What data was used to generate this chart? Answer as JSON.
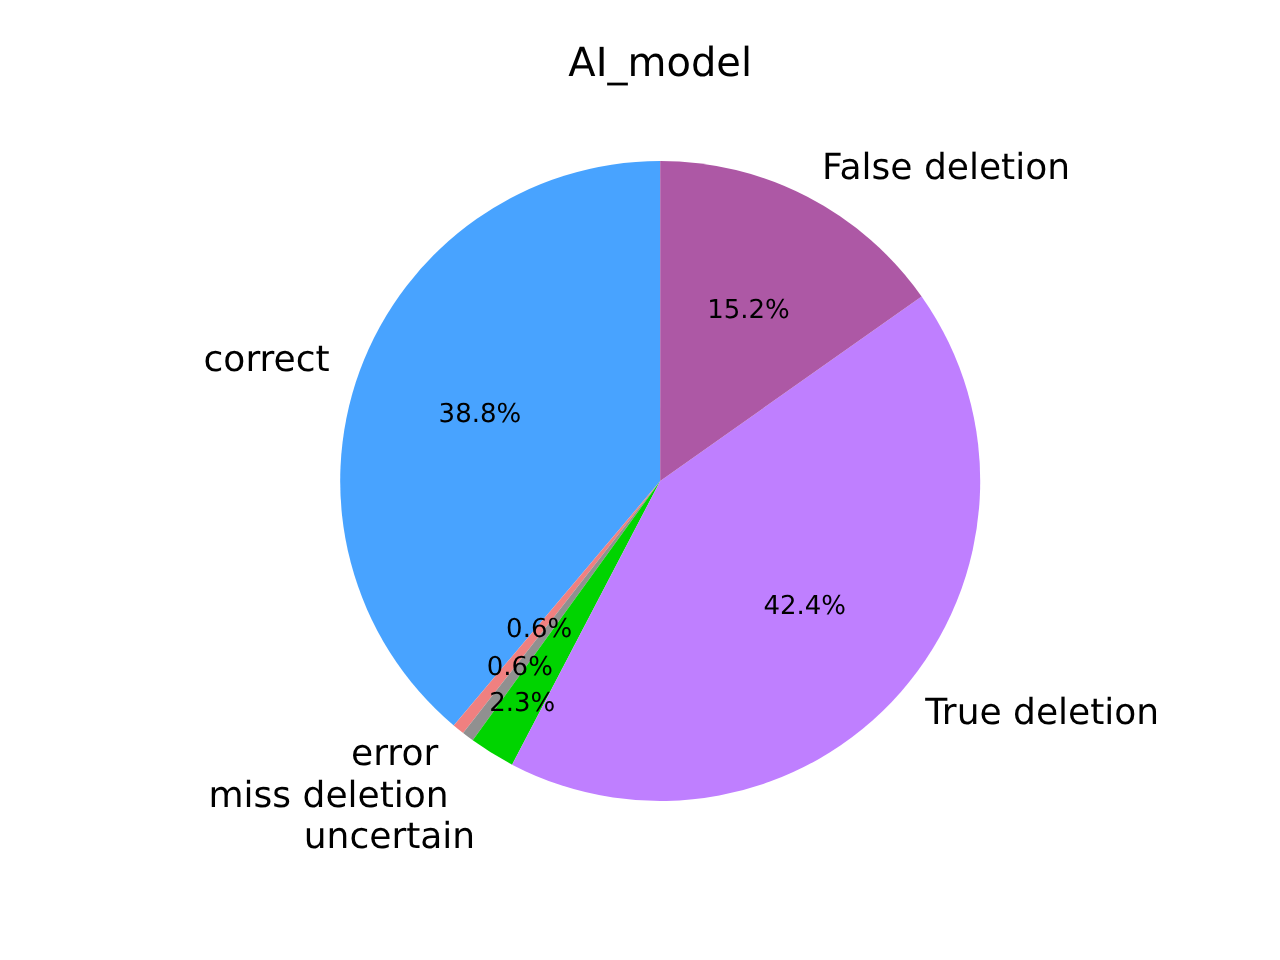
{
  "chart_data": {
    "type": "pie",
    "title": "AI_model",
    "categories": [
      "correct",
      "error",
      "miss deletion",
      "uncertain",
      "True deletion",
      "False deletion"
    ],
    "values": [
      38.8,
      0.6,
      0.6,
      2.3,
      42.4,
      15.2
    ],
    "colors": [
      "#48a3ff",
      "#f08080",
      "#909090",
      "#00d400",
      "#bf7fff",
      "#ad58a5"
    ],
    "value_labels": [
      "38.8%",
      "0.6%",
      "0.6%",
      "2.3%",
      "42.4%",
      "15.2%"
    ]
  }
}
